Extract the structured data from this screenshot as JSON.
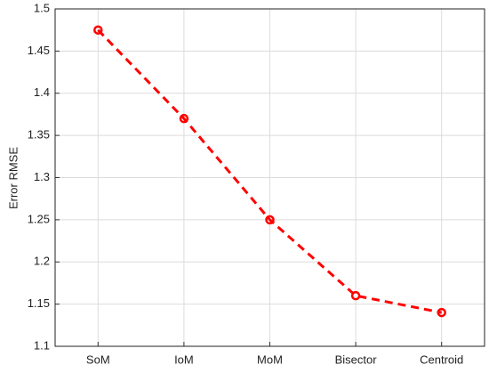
{
  "chart_data": {
    "type": "line",
    "ylabel": "Error RMSE",
    "categories": [
      "SoM",
      "IoM",
      "MoM",
      "Bisector",
      "Centroid"
    ],
    "values": [
      1.475,
      1.37,
      1.25,
      1.16,
      1.14
    ],
    "color": "#ff0000",
    "ylim": [
      1.1,
      1.5
    ],
    "yticks": [
      1.1,
      1.15,
      1.2,
      1.25,
      1.3,
      1.35,
      1.4,
      1.45,
      1.5
    ],
    "grid": true
  }
}
